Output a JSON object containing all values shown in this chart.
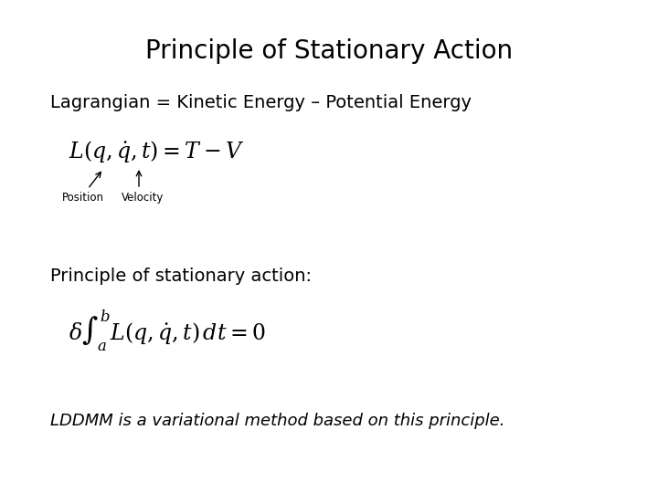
{
  "title": "Principle of Stationary Action",
  "subtitle": "Lagrangian = Kinetic Energy – Potential Energy",
  "eq1": "$L(q,\\dot{q},t) = T - V$",
  "label_position": "Position",
  "label_velocity": "Velocity",
  "section2": "Principle of stationary action:",
  "eq2": "$\\delta\\int_a^b L(q,\\dot{q},t)\\,dt = 0$",
  "footer": "LDDMM is a variational method based on this principle.",
  "bg_color": "#ffffff",
  "text_color": "#000000",
  "title_fontsize": 20,
  "subtitle_fontsize": 14,
  "eq_fontsize": 17,
  "label_fontsize": 8.5,
  "section_fontsize": 14,
  "footer_fontsize": 13
}
